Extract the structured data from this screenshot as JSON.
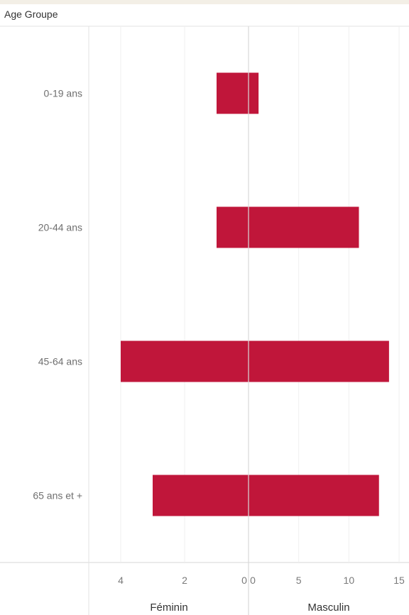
{
  "chart_data": {
    "type": "bar",
    "row_header": "Age Groupe",
    "categories": [
      "0-19 ans",
      "20-44 ans",
      "45-64 ans",
      "65 ans et +"
    ],
    "series": [
      {
        "name": "Féminin",
        "values": [
          1,
          1,
          4,
          3
        ],
        "xlim": [
          0,
          4
        ],
        "ticks": [
          4,
          2,
          0
        ]
      },
      {
        "name": "Masculin",
        "values": [
          1,
          11,
          14,
          13
        ],
        "xlim": [
          0,
          15
        ],
        "ticks": [
          0,
          5,
          10,
          15
        ]
      }
    ],
    "bar_color": "#c0163a",
    "grid": true
  }
}
